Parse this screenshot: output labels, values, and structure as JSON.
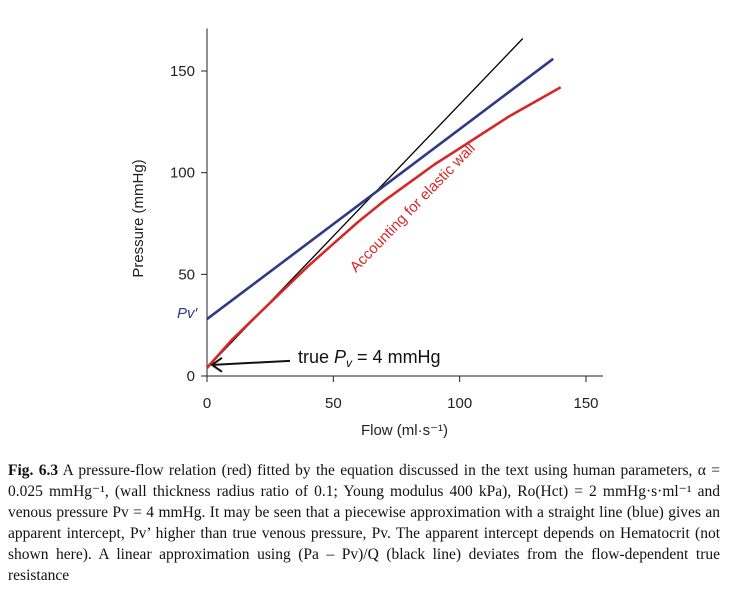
{
  "chart_data": {
    "type": "line",
    "title": "",
    "xlabel": "Flow (ml·s⁻¹)",
    "ylabel": "Pressure (mmHg)",
    "xlim": [
      0,
      150
    ],
    "ylim": [
      0,
      170
    ],
    "xticks": [
      0,
      50,
      100,
      150
    ],
    "yticks": [
      0,
      50,
      100,
      150
    ],
    "grid": false,
    "series": [
      {
        "color": "#000000",
        "x": [
          0,
          125
        ],
        "y": [
          4,
          166
        ]
      },
      {
        "color": "#2e3a87",
        "x": [
          0,
          137
        ],
        "y": [
          28,
          156
        ]
      },
      {
        "name": "Accounting for elastic wall",
        "color": "#d62728",
        "x": [
          0,
          10,
          20,
          30,
          40,
          50,
          60,
          70,
          80,
          90,
          100,
          110,
          120,
          130,
          140
        ],
        "y": [
          4,
          18,
          30,
          42,
          54,
          65,
          76,
          86,
          95,
          104,
          112,
          120,
          128,
          135,
          142
        ]
      }
    ],
    "annotations": {
      "pv_prime_label": "Pv′",
      "true_pv_prefix": "true",
      "true_pv_symbol": "P",
      "true_pv_sub": "v",
      "true_pv_suffix": "= 4 mmHg",
      "curve_label": "Accounting for elastic wall"
    }
  },
  "caption": {
    "label": "Fig. 6.3",
    "text": "A pressure-flow relation (red) fitted by the equation discussed in the text using human parameters, α = 0.025 mmHg⁻¹, (wall thickness radius ratio of 0.1; Young modulus 400 kPa), Ro(Hct) = 2 mmHg·s·ml⁻¹ and venous pressure Pv = 4 mmHg. It may be seen that a piecewise approximation with a straight line (blue) gives an apparent intercept, Pv’ higher than true venous pressure, Pv. The apparent intercept depends on Hematocrit (not shown here). A linear approximation using (Pa – Pv)/Q (black line) deviates from the flow-dependent true resistance"
  }
}
